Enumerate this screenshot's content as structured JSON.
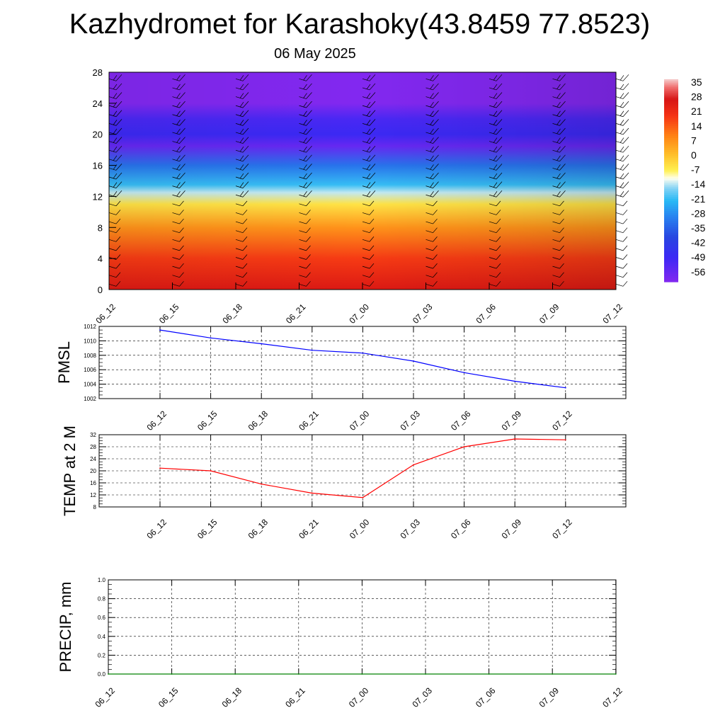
{
  "title": "Kazhydromet for Karashoky(43.8459 77.8523)",
  "subtitle": "06 May 2025",
  "chart_data": [
    {
      "type": "heatmap",
      "description": "Vertical cross-section of temperature with wind barbs",
      "x_tick_labels": [
        "06_12",
        "06_15",
        "06_18",
        "06_21",
        "07_00",
        "07_03",
        "07_06",
        "07_09",
        "07_12"
      ],
      "y_ticks": [
        0,
        4,
        8,
        12,
        16,
        20,
        24,
        28
      ],
      "ylim": [
        0,
        28
      ],
      "colorbar_labels": [
        "35",
        "28",
        "21",
        "14",
        "7",
        "0",
        "-7",
        "-14",
        "-21",
        "-28",
        "-35",
        "-42",
        "-49",
        "-56"
      ],
      "colorbar_range": [
        -63,
        42
      ],
      "temperature_profile": [
        {
          "level": 0,
          "value": 30
        },
        {
          "level": 4,
          "value": 22
        },
        {
          "level": 8,
          "value": 10
        },
        {
          "level": 11,
          "value": -3
        },
        {
          "level": 12.5,
          "value": -12
        },
        {
          "level": 13.5,
          "value": -20
        },
        {
          "level": 16,
          "value": -32
        },
        {
          "level": 18.5,
          "value": -58
        },
        {
          "level": 20,
          "value": -50
        },
        {
          "level": 22,
          "value": -53
        },
        {
          "level": 24,
          "value": -63
        },
        {
          "level": 28,
          "value": -63
        }
      ]
    },
    {
      "type": "line",
      "ylabel": "PMSL",
      "x_tick_labels": [
        "06_12",
        "06_15",
        "06_18",
        "06_21",
        "07_00",
        "07_03",
        "07_06",
        "07_09",
        "07_12"
      ],
      "y_ticks": [
        1002,
        1004,
        1006,
        1008,
        1010,
        1012
      ],
      "ylim": [
        1002,
        1012
      ],
      "series": [
        {
          "values": [
            1011.5,
            1010.4,
            1009.6,
            1008.7,
            1008.3,
            1007.2,
            1005.6,
            1004.4,
            1003.5
          ],
          "color": "#0000ff"
        }
      ]
    },
    {
      "type": "line",
      "ylabel": "TEMP at 2 M",
      "x_tick_labels": [
        "06_12",
        "06_15",
        "06_18",
        "06_21",
        "07_00",
        "07_03",
        "07_06",
        "07_09",
        "07_12"
      ],
      "y_ticks": [
        8,
        12,
        16,
        20,
        24,
        28,
        32
      ],
      "ylim": [
        8,
        32
      ],
      "series": [
        {
          "values": [
            20.9,
            20.0,
            15.6,
            12.6,
            11.1,
            22.0,
            28.0,
            30.6,
            30.3
          ],
          "color": "#ff0000"
        }
      ]
    },
    {
      "type": "line",
      "ylabel": "PRECIP, mm",
      "x_tick_labels": [
        "06_12",
        "06_15",
        "06_18",
        "06_21",
        "07_00",
        "07_03",
        "07_06",
        "07_09",
        "07_12"
      ],
      "y_ticks": [
        "0.0",
        "0.2",
        "0.4",
        "0.6",
        "0.8",
        "1.0"
      ],
      "ylim": [
        0,
        1
      ],
      "series": [
        {
          "values": [
            0,
            0,
            0,
            0,
            0,
            0,
            0,
            0,
            0
          ],
          "color": "#008000"
        }
      ]
    }
  ]
}
